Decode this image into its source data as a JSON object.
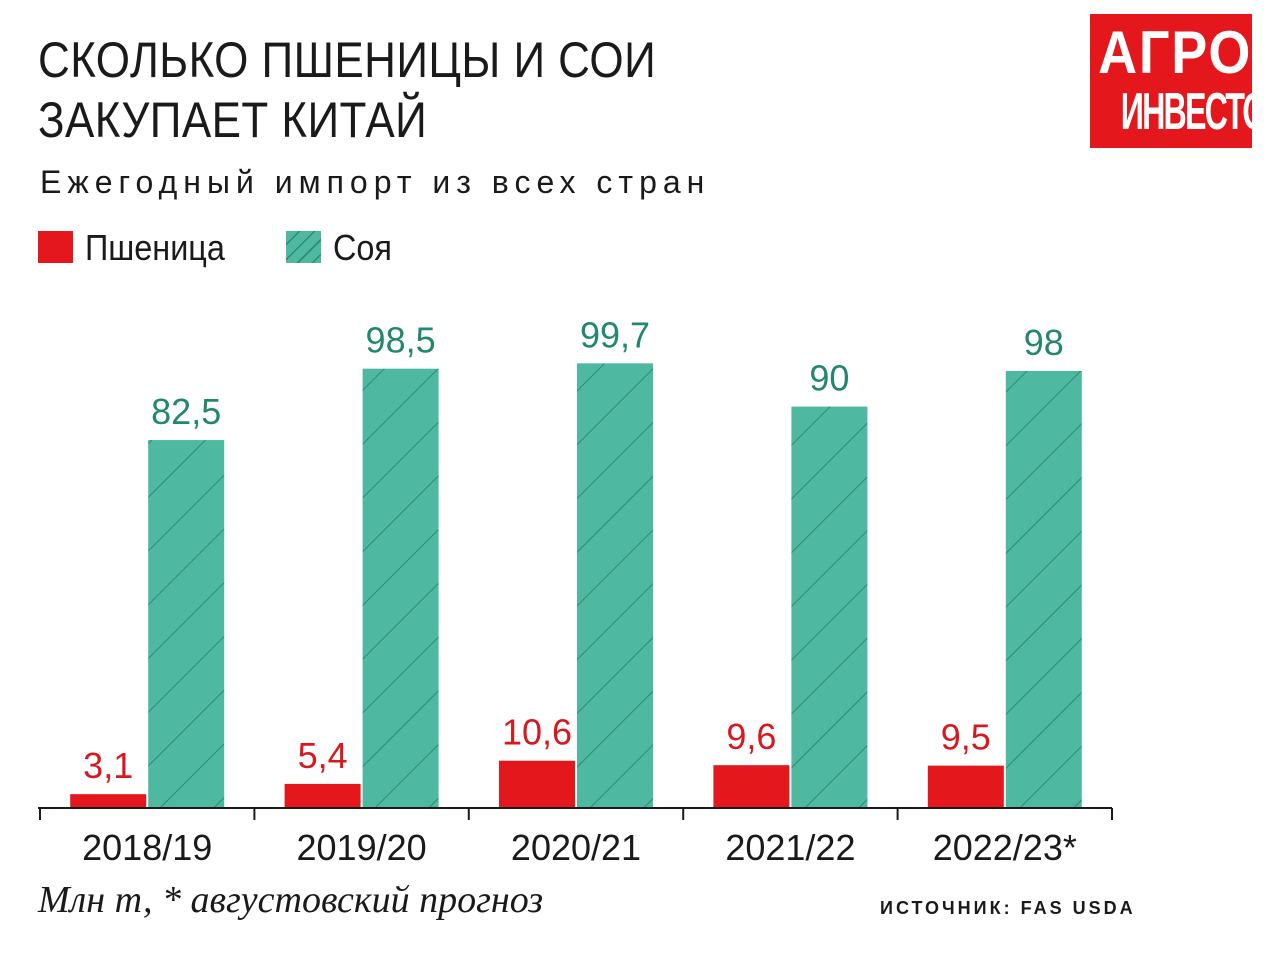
{
  "title_line1": "СКОЛЬКО ПШЕНИЦЫ И СОИ",
  "title_line2": "ЗАКУПАЕТ КИТАЙ",
  "subtitle": "Ежегодный импорт из всех стран",
  "logo": {
    "line1": "АГРО",
    "line2": "ИНВЕСТОР",
    "color": "#e3171c"
  },
  "note": "Млн т, * августовский прогноз",
  "source": "ИСТОЧНИК: FAS USDA",
  "chart_data": {
    "type": "bar",
    "title": "СКОЛЬКО ПШЕНИЦЫ И СОИ ЗАКУПАЕТ КИТАЙ",
    "subtitle": "Ежегодный импорт из всех стран",
    "categories": [
      "2018/19",
      "2019/20",
      "2020/21",
      "2021/22",
      "2022/23*"
    ],
    "series": [
      {
        "name": "Пшеница",
        "values": [
          3.1,
          5.4,
          10.6,
          9.6,
          9.5
        ],
        "labels": [
          "3,1",
          "5,4",
          "10,6",
          "9,6",
          "9,5"
        ],
        "color": "#e3171c",
        "label_color": "#d7181f",
        "pattern": "solid"
      },
      {
        "name": "Соя",
        "values": [
          82.5,
          98.5,
          99.7,
          90,
          98
        ],
        "labels": [
          "82,5",
          "98,5",
          "99,7",
          "90",
          "98"
        ],
        "color": "#4fb8a0",
        "label_color": "#23866f",
        "pattern": "hatched"
      }
    ],
    "ylim": [
      0,
      100
    ],
    "grid": false,
    "legend": "top-left",
    "unit": "Млн т"
  }
}
